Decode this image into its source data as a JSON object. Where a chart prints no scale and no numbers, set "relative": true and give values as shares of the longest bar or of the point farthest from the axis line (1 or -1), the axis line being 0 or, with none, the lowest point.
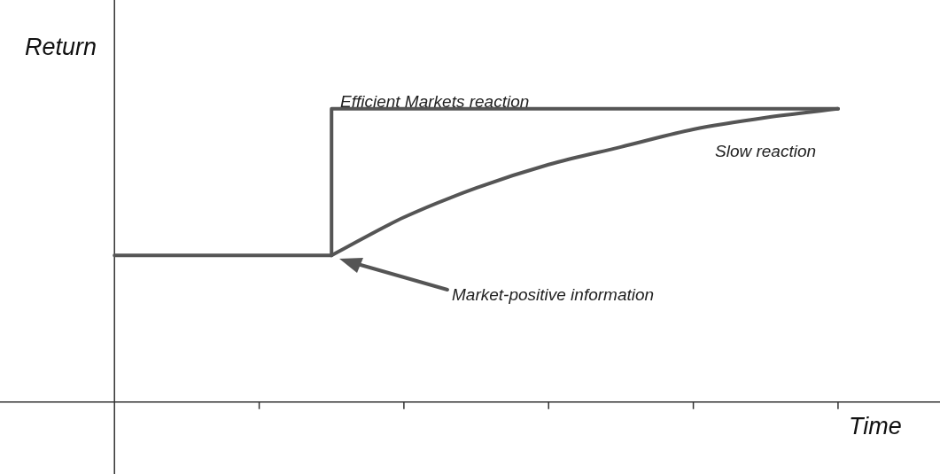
{
  "chart_data": {
    "type": "line",
    "relative": true,
    "xlabel": "Time",
    "ylabel": "Return",
    "categories": [
      null,
      null,
      null,
      null,
      null,
      null,
      null,
      null,
      null,
      null,
      null
    ],
    "annotations": [
      "Efficient Markets reaction",
      "Slow reaction",
      "Market-positive information"
    ],
    "series": [
      {
        "type": "step",
        "color": "#555555",
        "values": [
          0.5,
          0.5,
          0.5,
          1,
          1,
          1,
          1,
          1,
          1,
          1,
          1
        ]
      },
      {
        "color": "#555555",
        "values": [
          null,
          null,
          null,
          0.5,
          0.63,
          0.73,
          0.81,
          0.87,
          0.93,
          0.97,
          1
        ]
      }
    ]
  }
}
